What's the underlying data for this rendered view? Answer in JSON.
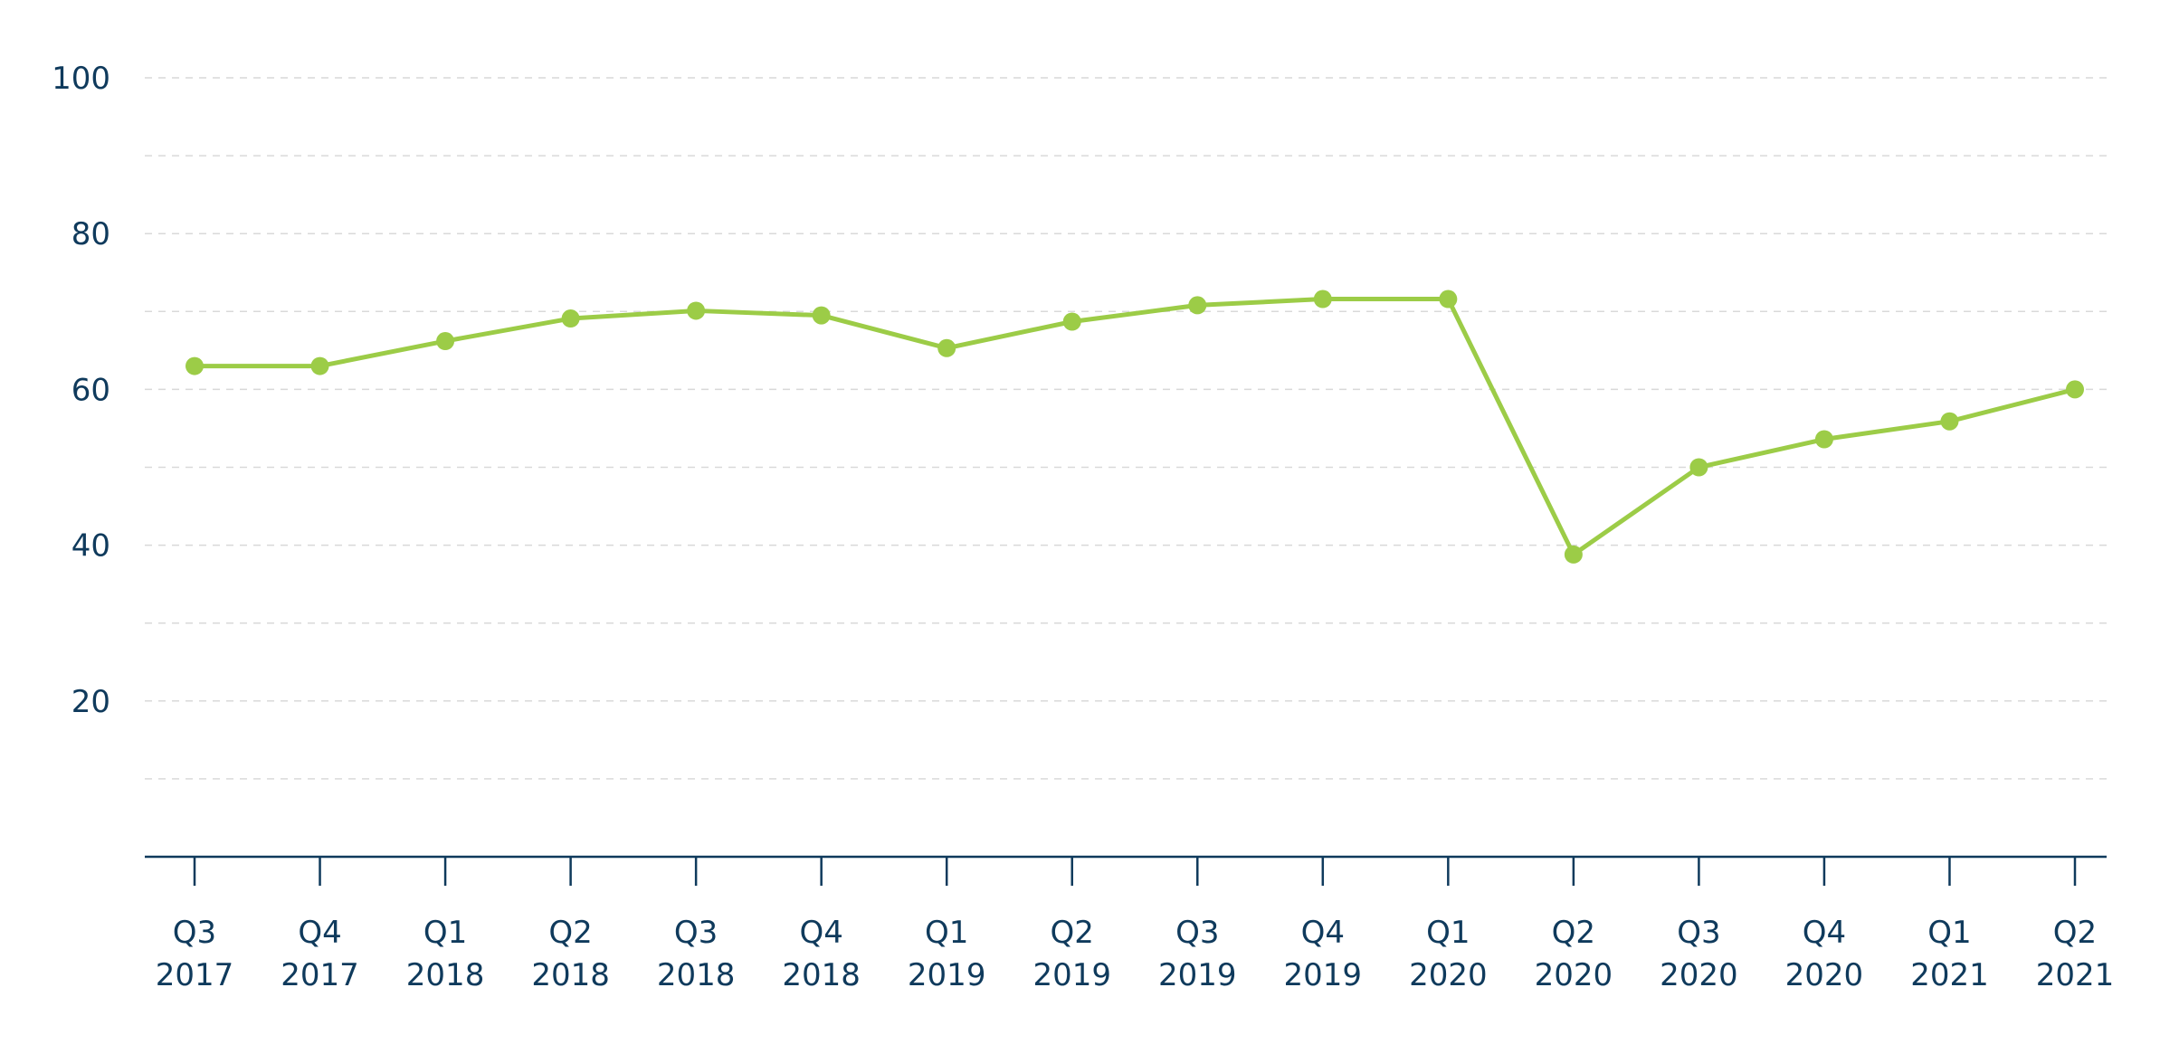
{
  "chart_data": {
    "type": "line",
    "title": "",
    "xlabel": "",
    "ylabel": "",
    "categories": [
      [
        "Q3",
        "2017"
      ],
      [
        "Q4",
        "2017"
      ],
      [
        "Q1",
        "2018"
      ],
      [
        "Q2",
        "2018"
      ],
      [
        "Q3",
        "2018"
      ],
      [
        "Q4",
        "2018"
      ],
      [
        "Q1",
        "2019"
      ],
      [
        "Q2",
        "2019"
      ],
      [
        "Q3",
        "2019"
      ],
      [
        "Q4",
        "2019"
      ],
      [
        "Q1",
        "2020"
      ],
      [
        "Q2",
        "2020"
      ],
      [
        "Q3",
        "2020"
      ],
      [
        "Q4",
        "2020"
      ],
      [
        "Q1",
        "2021"
      ],
      [
        "Q2",
        "2021"
      ]
    ],
    "series": [
      {
        "values": [
          63.0,
          63.0,
          66.2,
          69.1,
          70.1,
          69.5,
          65.3,
          68.7,
          70.8,
          71.6,
          71.6,
          38.8,
          50.0,
          53.6,
          55.9,
          60.0
        ],
        "color": "#9ccc47"
      }
    ],
    "ylim": [
      0,
      100
    ],
    "y_ticks": [
      20,
      40,
      60,
      80,
      100
    ],
    "y_tick_labels": [
      "20",
      "40",
      "60",
      "80",
      "100"
    ],
    "grid": true,
    "grid_step": 10,
    "legend": "none",
    "colors": {
      "line": "#9ccc47",
      "text": "#0f3a5c",
      "axis": "#0f3a5c",
      "grid": "#d9d9d9"
    }
  }
}
